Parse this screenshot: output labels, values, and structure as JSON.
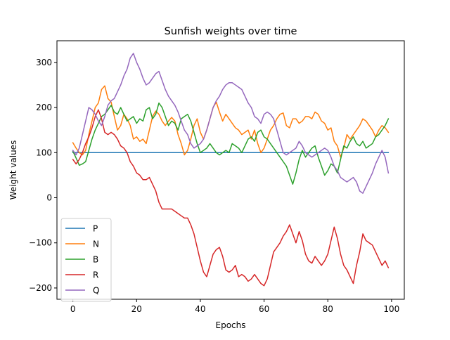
{
  "chart_data": {
    "type": "line",
    "title": "Sunfish weights over time",
    "xlabel": "Epochs",
    "ylabel": "Weight values",
    "xlim": [
      -5,
      104
    ],
    "ylim": [
      -225,
      348
    ],
    "xticks": [
      0,
      20,
      40,
      60,
      80,
      100
    ],
    "yticks": [
      -200,
      -100,
      0,
      100,
      200,
      300
    ],
    "legend_position": "lower-left",
    "grid": false,
    "x": [
      0,
      1,
      2,
      3,
      4,
      5,
      6,
      7,
      8,
      9,
      10,
      11,
      12,
      13,
      14,
      15,
      16,
      17,
      18,
      19,
      20,
      21,
      22,
      23,
      24,
      25,
      26,
      27,
      28,
      29,
      30,
      31,
      32,
      33,
      34,
      35,
      36,
      37,
      38,
      39,
      40,
      41,
      42,
      43,
      44,
      45,
      46,
      47,
      48,
      49,
      50,
      51,
      52,
      53,
      54,
      55,
      56,
      57,
      58,
      59,
      60,
      61,
      62,
      63,
      64,
      65,
      66,
      67,
      68,
      69,
      70,
      71,
      72,
      73,
      74,
      75,
      76,
      77,
      78,
      79,
      80,
      81,
      82,
      83,
      84,
      85,
      86,
      87,
      88,
      89,
      90,
      91,
      92,
      93,
      94,
      95,
      96,
      97,
      98,
      99
    ],
    "series": [
      {
        "name": "P",
        "color": "#1f77b4",
        "values": [
          100,
          100,
          100,
          100,
          100,
          100,
          100,
          100,
          100,
          100,
          100,
          100,
          100,
          100,
          100,
          100,
          100,
          100,
          100,
          100,
          100,
          100,
          100,
          100,
          100,
          100,
          100,
          100,
          100,
          100,
          100,
          100,
          100,
          100,
          100,
          100,
          100,
          100,
          100,
          100,
          100,
          100,
          100,
          100,
          100,
          100,
          100,
          100,
          100,
          100,
          100,
          100,
          100,
          100,
          100,
          100,
          100,
          100,
          100,
          100,
          100,
          100,
          100,
          100,
          100,
          100,
          100,
          100,
          100,
          100,
          100,
          100,
          100,
          100,
          100,
          100,
          100,
          100,
          100,
          100,
          100,
          100,
          100,
          100,
          100,
          100,
          100,
          100,
          100,
          100,
          100,
          100,
          100,
          100,
          100,
          100,
          100,
          100,
          100,
          100
        ]
      },
      {
        "name": "N",
        "color": "#ff7f0e",
        "values": [
          122,
          110,
          100,
          95,
          105,
          140,
          170,
          200,
          210,
          240,
          248,
          220,
          212,
          180,
          150,
          160,
          185,
          175,
          160,
          130,
          135,
          125,
          130,
          120,
          150,
          180,
          192,
          185,
          170,
          160,
          170,
          178,
          170,
          140,
          120,
          95,
          105,
          130,
          160,
          175,
          145,
          130,
          150,
          175,
          200,
          212,
          190,
          170,
          185,
          175,
          165,
          155,
          150,
          140,
          145,
          150,
          130,
          150,
          120,
          100,
          110,
          130,
          150,
          160,
          175,
          185,
          188,
          160,
          155,
          175,
          175,
          165,
          170,
          180,
          180,
          175,
          190,
          185,
          170,
          165,
          150,
          155,
          125,
          115,
          90,
          110,
          140,
          130,
          140,
          150,
          160,
          175,
          170,
          160,
          150,
          135,
          150,
          160,
          155,
          145
        ]
      },
      {
        "name": "B",
        "color": "#2ca02c",
        "values": [
          103,
          88,
          72,
          75,
          80,
          105,
          130,
          150,
          165,
          180,
          185,
          195,
          205,
          190,
          185,
          200,
          185,
          170,
          175,
          180,
          165,
          175,
          170,
          195,
          200,
          175,
          185,
          210,
          200,
          180,
          160,
          170,
          165,
          150,
          175,
          180,
          185,
          170,
          145,
          120,
          100,
          105,
          110,
          120,
          110,
          100,
          95,
          100,
          105,
          100,
          120,
          115,
          110,
          100,
          115,
          130,
          135,
          125,
          145,
          150,
          135,
          130,
          120,
          110,
          100,
          90,
          80,
          70,
          50,
          30,
          55,
          85,
          105,
          90,
          100,
          110,
          115,
          90,
          70,
          50,
          60,
          75,
          70,
          55,
          85,
          115,
          110,
          125,
          135,
          120,
          115,
          125,
          110,
          115,
          120,
          135,
          140,
          150,
          160,
          175
        ]
      },
      {
        "name": "R",
        "color": "#d62728",
        "values": [
          85,
          75,
          85,
          100,
          120,
          135,
          155,
          180,
          195,
          175,
          145,
          140,
          145,
          140,
          130,
          115,
          110,
          100,
          80,
          70,
          55,
          50,
          40,
          40,
          45,
          30,
          15,
          -10,
          -25,
          -25,
          -25,
          -25,
          -30,
          -35,
          -40,
          -45,
          -45,
          -60,
          -80,
          -110,
          -140,
          -165,
          -175,
          -150,
          -125,
          -115,
          -110,
          -130,
          -160,
          -165,
          -160,
          -150,
          -175,
          -170,
          -175,
          -185,
          -180,
          -170,
          -180,
          -190,
          -195,
          -180,
          -150,
          -120,
          -110,
          -100,
          -85,
          -75,
          -60,
          -80,
          -100,
          -75,
          -95,
          -125,
          -140,
          -145,
          -130,
          -140,
          -150,
          -140,
          -125,
          -95,
          -65,
          -90,
          -125,
          -150,
          -160,
          -175,
          -190,
          -150,
          -120,
          -80,
          -95,
          -100,
          -105,
          -120,
          -135,
          -150,
          -140,
          -155
        ]
      },
      {
        "name": "Q",
        "color": "#9467bd",
        "values": [
          105,
          95,
          110,
          140,
          170,
          200,
          195,
          185,
          170,
          160,
          180,
          205,
          215,
          220,
          235,
          250,
          270,
          285,
          310,
          320,
          300,
          285,
          265,
          250,
          255,
          265,
          275,
          280,
          260,
          240,
          225,
          215,
          205,
          190,
          170,
          150,
          140,
          120,
          110,
          115,
          120,
          130,
          150,
          175,
          200,
          215,
          225,
          240,
          250,
          255,
          255,
          250,
          245,
          240,
          225,
          210,
          200,
          180,
          175,
          165,
          185,
          190,
          185,
          175,
          150,
          125,
          100,
          95,
          100,
          105,
          110,
          125,
          115,
          100,
          95,
          90,
          95,
          100,
          105,
          110,
          105,
          90,
          70,
          60,
          45,
          40,
          35,
          40,
          45,
          35,
          15,
          10,
          25,
          40,
          55,
          75,
          90,
          105,
          90,
          55
        ]
      }
    ]
  }
}
